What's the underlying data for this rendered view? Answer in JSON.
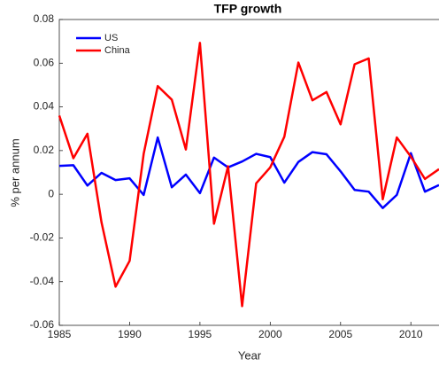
{
  "chart_data": {
    "type": "line",
    "title": "TFP growth",
    "xlabel": "Year",
    "ylabel": "% per annum",
    "x": [
      1985,
      1986,
      1987,
      1988,
      1989,
      1990,
      1991,
      1992,
      1993,
      1994,
      1995,
      1996,
      1997,
      1998,
      1999,
      2000,
      2001,
      2002,
      2003,
      2004,
      2005,
      2006,
      2007,
      2008,
      2009,
      2010,
      2011,
      2012
    ],
    "series": [
      {
        "name": "US",
        "color": "#0000ff",
        "values": [
          0.013,
          0.0133,
          0.004,
          0.0098,
          0.0065,
          0.0073,
          -0.0003,
          0.026,
          0.0032,
          0.009,
          0.0005,
          0.0168,
          0.0123,
          0.015,
          0.0185,
          0.017,
          0.0053,
          0.0148,
          0.0193,
          0.0183,
          0.0105,
          0.002,
          0.0012,
          -0.0063,
          -0.0003,
          0.0188,
          0.0012,
          0.0042
        ]
      },
      {
        "name": "China",
        "color": "#ff0000",
        "values": [
          0.036,
          0.0165,
          0.0277,
          -0.0128,
          -0.0423,
          -0.0305,
          0.0185,
          0.0495,
          0.0433,
          0.0205,
          0.0693,
          -0.0135,
          0.0128,
          -0.0512,
          0.005,
          0.0123,
          0.0263,
          0.0603,
          0.043,
          0.0468,
          0.032,
          0.0595,
          0.0622,
          -0.0023,
          0.026,
          0.0172,
          0.007,
          0.0115
        ]
      }
    ],
    "xlim": [
      1985,
      2012
    ],
    "xticks": [
      1985,
      1990,
      1995,
      2000,
      2005,
      2010
    ],
    "ylim": [
      -0.06,
      0.08
    ],
    "yticks": [
      -0.06,
      -0.04,
      -0.02,
      0,
      0.02,
      0.04,
      0.06,
      0.08
    ],
    "legend": "upper left"
  }
}
